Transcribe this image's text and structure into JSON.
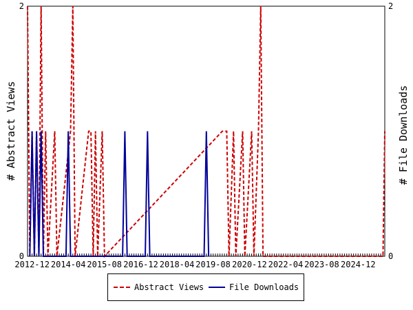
{
  "chart_data": {
    "type": "line",
    "ylabel_left": "# Abstract Views",
    "ylabel_right": "# File Downloads",
    "x_range": [
      2012.75,
      2025.9
    ],
    "ylim": [
      0,
      2
    ],
    "y_ticks_left": [
      "0",
      "2"
    ],
    "y_ticks_right": [
      "0",
      "2"
    ],
    "x_tick_labels": [
      {
        "x": 2012.92,
        "label": "2012-12"
      },
      {
        "x": 2014.25,
        "label": "2014-04"
      },
      {
        "x": 2015.58,
        "label": "2015-08"
      },
      {
        "x": 2016.92,
        "label": "2016-12"
      },
      {
        "x": 2018.25,
        "label": "2018-04"
      },
      {
        "x": 2019.58,
        "label": "2019-08"
      },
      {
        "x": 2020.92,
        "label": "2020-12"
      },
      {
        "x": 2022.25,
        "label": "2022-04"
      },
      {
        "x": 2023.58,
        "label": "2023-08"
      },
      {
        "x": 2024.92,
        "label": "2024-12"
      }
    ],
    "grid": false,
    "legend_position": "bottom",
    "series": [
      {
        "name": "Abstract Views",
        "axis": "left",
        "color": "#cc0000",
        "style": "dashed",
        "points": [
          [
            2012.75,
            2
          ],
          [
            2012.833,
            0
          ],
          [
            2012.917,
            1
          ],
          [
            2013.0,
            0
          ],
          [
            2013.083,
            1
          ],
          [
            2013.167,
            0
          ],
          [
            2013.25,
            2
          ],
          [
            2013.333,
            0
          ],
          [
            2013.417,
            1
          ],
          [
            2013.5,
            0
          ],
          [
            2013.75,
            1
          ],
          [
            2013.833,
            0
          ],
          [
            2014.333,
            1
          ],
          [
            2014.417,
            2
          ],
          [
            2014.5,
            0
          ],
          [
            2015.0,
            1
          ],
          [
            2015.083,
            1
          ],
          [
            2015.167,
            0
          ],
          [
            2015.25,
            1
          ],
          [
            2015.333,
            0
          ],
          [
            2015.5,
            1
          ],
          [
            2015.583,
            0
          ],
          [
            2019.917,
            1
          ],
          [
            2020.0,
            1
          ],
          [
            2020.083,
            1
          ],
          [
            2020.167,
            0
          ],
          [
            2020.333,
            1
          ],
          [
            2020.417,
            0
          ],
          [
            2020.667,
            1
          ],
          [
            2020.75,
            0
          ],
          [
            2021.0,
            1
          ],
          [
            2021.083,
            0
          ],
          [
            2021.25,
            1
          ],
          [
            2021.333,
            2
          ],
          [
            2021.417,
            0
          ],
          [
            2025.833,
            0
          ],
          [
            2025.9,
            1
          ]
        ]
      },
      {
        "name": "File Downloads",
        "axis": "right",
        "color": "#000099",
        "style": "solid",
        "points": [
          [
            2012.833,
            0
          ],
          [
            2012.917,
            1
          ],
          [
            2013.0,
            0
          ],
          [
            2013.083,
            1
          ],
          [
            2013.167,
            0
          ],
          [
            2013.25,
            1
          ],
          [
            2013.333,
            0
          ],
          [
            2014.167,
            0
          ],
          [
            2014.25,
            1
          ],
          [
            2014.333,
            0
          ],
          [
            2016.25,
            0
          ],
          [
            2016.333,
            1
          ],
          [
            2016.417,
            0
          ],
          [
            2017.083,
            0
          ],
          [
            2017.167,
            1
          ],
          [
            2017.25,
            0
          ],
          [
            2019.25,
            0
          ],
          [
            2019.333,
            1
          ],
          [
            2019.417,
            0
          ]
        ]
      }
    ]
  }
}
